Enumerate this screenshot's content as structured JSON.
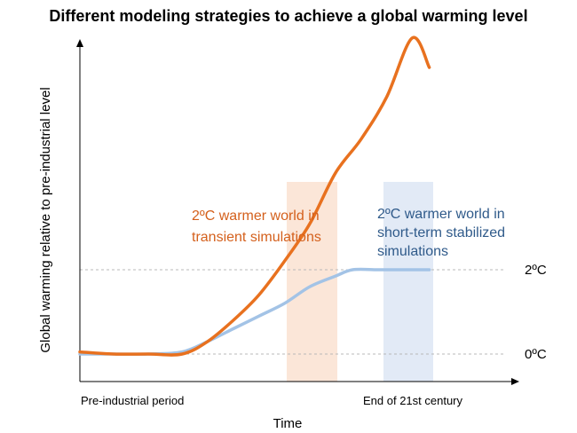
{
  "chart_data": {
    "type": "line",
    "title": "Different modeling strategies to achieve a global warming level",
    "xlabel": "Time",
    "ylabel": "Global warming relative to pre-industrial level",
    "x_tick_labels": [
      "Pre-industrial period",
      "End of 21st century"
    ],
    "x_range": [
      0,
      100
    ],
    "y_range": [
      -0.6,
      7.2
    ],
    "reference_lines": [
      {
        "label": "2ºC",
        "value": 2
      },
      {
        "label": "0ºC",
        "value": 0
      }
    ],
    "shaded_regions": [
      {
        "name": "transient-window",
        "x": [
          47,
          59
        ],
        "color": "#f9e0cf"
      },
      {
        "name": "stabilized-window",
        "x": [
          70,
          82
        ],
        "color": "#dde7f5"
      }
    ],
    "series": [
      {
        "name": "Transient simulations",
        "color": "#e8711f",
        "x": [
          0,
          8,
          16,
          24,
          30,
          36,
          42,
          48,
          54,
          60,
          66,
          72,
          78,
          82
        ],
        "values": [
          0.05,
          0.0,
          0.0,
          0.0,
          0.3,
          0.8,
          1.4,
          2.2,
          3.1,
          4.3,
          5.1,
          6.1,
          7.5,
          6.8
        ]
      },
      {
        "name": "Short-term stabilized simulations",
        "color": "#a3c3e6",
        "x": [
          0,
          8,
          16,
          24,
          30,
          36,
          42,
          48,
          54,
          60,
          64,
          70,
          76,
          82
        ],
        "values": [
          0.0,
          0.0,
          0.0,
          0.05,
          0.3,
          0.6,
          0.9,
          1.2,
          1.6,
          1.85,
          2.0,
          2.0,
          2.0,
          2.0
        ]
      }
    ],
    "annotations": [
      {
        "name": "transient-annotation",
        "lines": [
          "2ºC warmer world in",
          "transient simulations"
        ],
        "color": "#d4601c"
      },
      {
        "name": "stabilized-annotation",
        "lines": [
          "2ºC warmer world in",
          "short-term stabilized",
          "simulations"
        ],
        "color": "#2f5a8a"
      }
    ]
  }
}
